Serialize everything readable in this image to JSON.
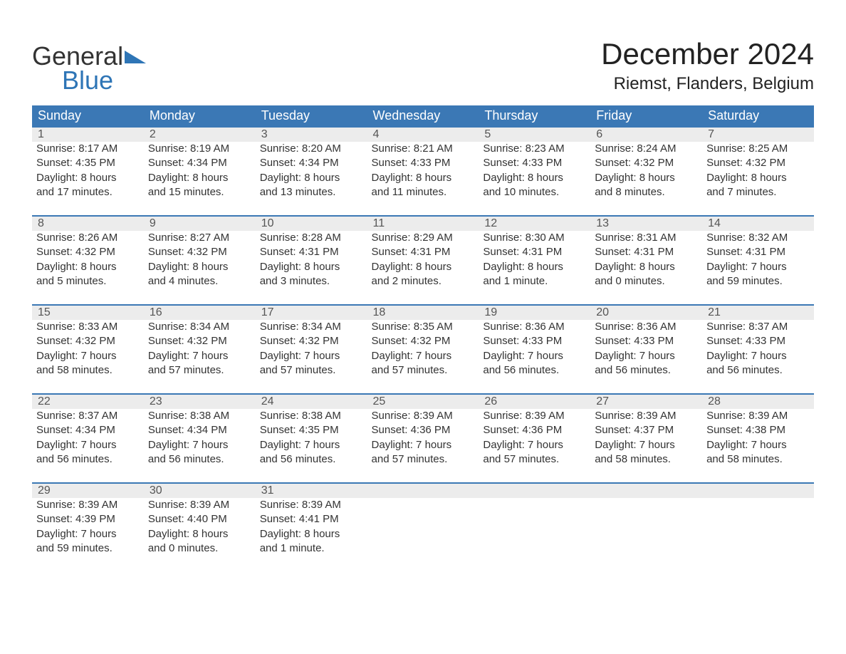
{
  "logo": {
    "text1": "General",
    "text2": "Blue",
    "color_general": "#333333",
    "color_blue": "#2e75b6",
    "triangle_color": "#2e75b6"
  },
  "title": "December 2024",
  "location": "Riemst, Flanders, Belgium",
  "header_bg": "#3b78b5",
  "header_text_color": "#ffffff",
  "daynum_bg": "#ececec",
  "daynum_border": "#3b78b5",
  "body_bg": "#ffffff",
  "text_color": "#333333",
  "font_family": "Arial",
  "title_fontsize": 42,
  "location_fontsize": 24,
  "header_fontsize": 18,
  "cell_fontsize": 15,
  "daynum_fontsize": 16,
  "weekdays": [
    "Sunday",
    "Monday",
    "Tuesday",
    "Wednesday",
    "Thursday",
    "Friday",
    "Saturday"
  ],
  "weeks": [
    [
      {
        "num": "1",
        "sunrise": "Sunrise: 8:17 AM",
        "sunset": "Sunset: 4:35 PM",
        "d1": "Daylight: 8 hours",
        "d2": "and 17 minutes."
      },
      {
        "num": "2",
        "sunrise": "Sunrise: 8:19 AM",
        "sunset": "Sunset: 4:34 PM",
        "d1": "Daylight: 8 hours",
        "d2": "and 15 minutes."
      },
      {
        "num": "3",
        "sunrise": "Sunrise: 8:20 AM",
        "sunset": "Sunset: 4:34 PM",
        "d1": "Daylight: 8 hours",
        "d2": "and 13 minutes."
      },
      {
        "num": "4",
        "sunrise": "Sunrise: 8:21 AM",
        "sunset": "Sunset: 4:33 PM",
        "d1": "Daylight: 8 hours",
        "d2": "and 11 minutes."
      },
      {
        "num": "5",
        "sunrise": "Sunrise: 8:23 AM",
        "sunset": "Sunset: 4:33 PM",
        "d1": "Daylight: 8 hours",
        "d2": "and 10 minutes."
      },
      {
        "num": "6",
        "sunrise": "Sunrise: 8:24 AM",
        "sunset": "Sunset: 4:32 PM",
        "d1": "Daylight: 8 hours",
        "d2": "and 8 minutes."
      },
      {
        "num": "7",
        "sunrise": "Sunrise: 8:25 AM",
        "sunset": "Sunset: 4:32 PM",
        "d1": "Daylight: 8 hours",
        "d2": "and 7 minutes."
      }
    ],
    [
      {
        "num": "8",
        "sunrise": "Sunrise: 8:26 AM",
        "sunset": "Sunset: 4:32 PM",
        "d1": "Daylight: 8 hours",
        "d2": "and 5 minutes."
      },
      {
        "num": "9",
        "sunrise": "Sunrise: 8:27 AM",
        "sunset": "Sunset: 4:32 PM",
        "d1": "Daylight: 8 hours",
        "d2": "and 4 minutes."
      },
      {
        "num": "10",
        "sunrise": "Sunrise: 8:28 AM",
        "sunset": "Sunset: 4:31 PM",
        "d1": "Daylight: 8 hours",
        "d2": "and 3 minutes."
      },
      {
        "num": "11",
        "sunrise": "Sunrise: 8:29 AM",
        "sunset": "Sunset: 4:31 PM",
        "d1": "Daylight: 8 hours",
        "d2": "and 2 minutes."
      },
      {
        "num": "12",
        "sunrise": "Sunrise: 8:30 AM",
        "sunset": "Sunset: 4:31 PM",
        "d1": "Daylight: 8 hours",
        "d2": "and 1 minute."
      },
      {
        "num": "13",
        "sunrise": "Sunrise: 8:31 AM",
        "sunset": "Sunset: 4:31 PM",
        "d1": "Daylight: 8 hours",
        "d2": "and 0 minutes."
      },
      {
        "num": "14",
        "sunrise": "Sunrise: 8:32 AM",
        "sunset": "Sunset: 4:31 PM",
        "d1": "Daylight: 7 hours",
        "d2": "and 59 minutes."
      }
    ],
    [
      {
        "num": "15",
        "sunrise": "Sunrise: 8:33 AM",
        "sunset": "Sunset: 4:32 PM",
        "d1": "Daylight: 7 hours",
        "d2": "and 58 minutes."
      },
      {
        "num": "16",
        "sunrise": "Sunrise: 8:34 AM",
        "sunset": "Sunset: 4:32 PM",
        "d1": "Daylight: 7 hours",
        "d2": "and 57 minutes."
      },
      {
        "num": "17",
        "sunrise": "Sunrise: 8:34 AM",
        "sunset": "Sunset: 4:32 PM",
        "d1": "Daylight: 7 hours",
        "d2": "and 57 minutes."
      },
      {
        "num": "18",
        "sunrise": "Sunrise: 8:35 AM",
        "sunset": "Sunset: 4:32 PM",
        "d1": "Daylight: 7 hours",
        "d2": "and 57 minutes."
      },
      {
        "num": "19",
        "sunrise": "Sunrise: 8:36 AM",
        "sunset": "Sunset: 4:33 PM",
        "d1": "Daylight: 7 hours",
        "d2": "and 56 minutes."
      },
      {
        "num": "20",
        "sunrise": "Sunrise: 8:36 AM",
        "sunset": "Sunset: 4:33 PM",
        "d1": "Daylight: 7 hours",
        "d2": "and 56 minutes."
      },
      {
        "num": "21",
        "sunrise": "Sunrise: 8:37 AM",
        "sunset": "Sunset: 4:33 PM",
        "d1": "Daylight: 7 hours",
        "d2": "and 56 minutes."
      }
    ],
    [
      {
        "num": "22",
        "sunrise": "Sunrise: 8:37 AM",
        "sunset": "Sunset: 4:34 PM",
        "d1": "Daylight: 7 hours",
        "d2": "and 56 minutes."
      },
      {
        "num": "23",
        "sunrise": "Sunrise: 8:38 AM",
        "sunset": "Sunset: 4:34 PM",
        "d1": "Daylight: 7 hours",
        "d2": "and 56 minutes."
      },
      {
        "num": "24",
        "sunrise": "Sunrise: 8:38 AM",
        "sunset": "Sunset: 4:35 PM",
        "d1": "Daylight: 7 hours",
        "d2": "and 56 minutes."
      },
      {
        "num": "25",
        "sunrise": "Sunrise: 8:39 AM",
        "sunset": "Sunset: 4:36 PM",
        "d1": "Daylight: 7 hours",
        "d2": "and 57 minutes."
      },
      {
        "num": "26",
        "sunrise": "Sunrise: 8:39 AM",
        "sunset": "Sunset: 4:36 PM",
        "d1": "Daylight: 7 hours",
        "d2": "and 57 minutes."
      },
      {
        "num": "27",
        "sunrise": "Sunrise: 8:39 AM",
        "sunset": "Sunset: 4:37 PM",
        "d1": "Daylight: 7 hours",
        "d2": "and 58 minutes."
      },
      {
        "num": "28",
        "sunrise": "Sunrise: 8:39 AM",
        "sunset": "Sunset: 4:38 PM",
        "d1": "Daylight: 7 hours",
        "d2": "and 58 minutes."
      }
    ],
    [
      {
        "num": "29",
        "sunrise": "Sunrise: 8:39 AM",
        "sunset": "Sunset: 4:39 PM",
        "d1": "Daylight: 7 hours",
        "d2": "and 59 minutes."
      },
      {
        "num": "30",
        "sunrise": "Sunrise: 8:39 AM",
        "sunset": "Sunset: 4:40 PM",
        "d1": "Daylight: 8 hours",
        "d2": "and 0 minutes."
      },
      {
        "num": "31",
        "sunrise": "Sunrise: 8:39 AM",
        "sunset": "Sunset: 4:41 PM",
        "d1": "Daylight: 8 hours",
        "d2": "and 1 minute."
      },
      null,
      null,
      null,
      null
    ]
  ]
}
